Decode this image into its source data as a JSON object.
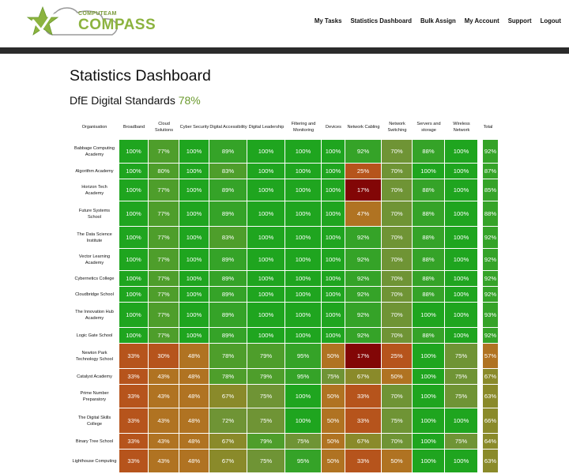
{
  "header": {
    "logo_small": "COMPUTEAM",
    "logo_big": "COMPASS",
    "nav": [
      "My Tasks",
      "Statistics Dashboard",
      "Bulk Assign",
      "My Account",
      "Support",
      "Logout"
    ]
  },
  "page_title": "Statistics Dashboard",
  "subtitle": {
    "label": "DfE Digital Standards",
    "value": "78%"
  },
  "table": {
    "org_header": "Organisation",
    "columns": [
      "Broadband",
      "Cloud Solutions",
      "Cyber Security",
      "Digital Accessibility",
      "Digital Leadership",
      "Filtering and Monitoring",
      "Devices",
      "Network Cabling",
      "Network Switching",
      "Servers and storage",
      "Wireless Network",
      "Total"
    ],
    "rows": [
      {
        "org": "Babbage Computing Academy",
        "values": [
          100,
          77,
          100,
          89,
          100,
          100,
          100,
          92,
          70,
          88,
          100,
          92
        ]
      },
      {
        "org": "Algorithm Academy",
        "values": [
          100,
          80,
          100,
          83,
          100,
          100,
          100,
          25,
          70,
          100,
          100,
          87
        ]
      },
      {
        "org": "Horizon Tech Academy",
        "values": [
          100,
          77,
          100,
          89,
          100,
          100,
          100,
          17,
          70,
          88,
          100,
          85
        ]
      },
      {
        "org": "Future Systems School",
        "values": [
          100,
          77,
          100,
          89,
          100,
          100,
          100,
          47,
          70,
          88,
          100,
          88
        ]
      },
      {
        "org": "The Data Science Institute",
        "values": [
          100,
          77,
          100,
          83,
          100,
          100,
          100,
          92,
          70,
          88,
          100,
          92
        ]
      },
      {
        "org": "Vector Learning Academy",
        "values": [
          100,
          77,
          100,
          89,
          100,
          100,
          100,
          92,
          70,
          88,
          100,
          92
        ]
      },
      {
        "org": "Cybernetics College",
        "values": [
          100,
          77,
          100,
          89,
          100,
          100,
          100,
          92,
          70,
          88,
          100,
          92
        ]
      },
      {
        "org": "Cloudbridge School",
        "values": [
          100,
          77,
          100,
          89,
          100,
          100,
          100,
          92,
          70,
          88,
          100,
          92
        ]
      },
      {
        "org": "The Innovation Hub Academy",
        "values": [
          100,
          77,
          100,
          89,
          100,
          100,
          100,
          92,
          70,
          100,
          100,
          93
        ]
      },
      {
        "org": "Logic Gate School",
        "values": [
          100,
          77,
          100,
          89,
          100,
          100,
          100,
          92,
          70,
          88,
          100,
          92
        ]
      },
      {
        "org": "Newton Park Technology School",
        "values": [
          33,
          30,
          48,
          78,
          79,
          95,
          50,
          17,
          25,
          100,
          75,
          57
        ]
      },
      {
        "org": "Catalyst Academy",
        "values": [
          33,
          43,
          48,
          78,
          79,
          95,
          75,
          67,
          50,
          100,
          75,
          67
        ]
      },
      {
        "org": "Prime Number Preparatory",
        "values": [
          33,
          43,
          48,
          67,
          75,
          100,
          50,
          33,
          70,
          100,
          75,
          63
        ]
      },
      {
        "org": "The Digital Skills College",
        "values": [
          33,
          43,
          48,
          72,
          75,
          100,
          50,
          33,
          75,
          100,
          100,
          66
        ]
      },
      {
        "org": "Binary Tree School",
        "values": [
          33,
          43,
          48,
          67,
          79,
          75,
          50,
          67,
          70,
          100,
          75,
          64
        ]
      },
      {
        "org": "Lighthouse Computing",
        "values": [
          33,
          43,
          48,
          67,
          75,
          95,
          50,
          33,
          50,
          100,
          100,
          63
        ]
      }
    ]
  },
  "colors": {
    "full": "#1fa51f",
    "high": "#35a328",
    "mid_high": "#4e9e2b",
    "mid": "#6f9435",
    "low_mid": "#8a8a2a",
    "low": "#b07322",
    "lower": "#b6541c",
    "lowest": "#820606"
  }
}
